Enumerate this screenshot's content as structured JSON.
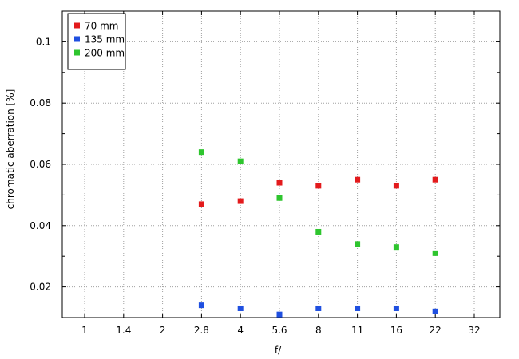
{
  "chart_data": {
    "type": "scatter",
    "title": "",
    "xlabel": "f/",
    "ylabel": "chromatic aberration [%]",
    "x_scale": "categorical",
    "categories": [
      "1",
      "1.4",
      "2",
      "2.8",
      "4",
      "5.6",
      "8",
      "11",
      "16",
      "22",
      "32"
    ],
    "ylim": [
      0.01,
      0.11
    ],
    "yticks": [
      "0.02",
      "0.04",
      "0.06",
      "0.08",
      "0.1"
    ],
    "ytick_values": [
      0.02,
      0.04,
      0.06,
      0.08,
      0.1
    ],
    "grid": true,
    "legend_position": "top-left",
    "series": [
      {
        "name": "70 mm",
        "color": "#e31a1c",
        "points": [
          {
            "x": "2.8",
            "y": 0.047
          },
          {
            "x": "4",
            "y": 0.048
          },
          {
            "x": "5.6",
            "y": 0.054
          },
          {
            "x": "8",
            "y": 0.053
          },
          {
            "x": "11",
            "y": 0.055
          },
          {
            "x": "16",
            "y": 0.053
          },
          {
            "x": "22",
            "y": 0.055
          }
        ]
      },
      {
        "name": "135 mm",
        "color": "#1f4fe0",
        "points": [
          {
            "x": "2.8",
            "y": 0.014
          },
          {
            "x": "4",
            "y": 0.013
          },
          {
            "x": "5.6",
            "y": 0.011
          },
          {
            "x": "8",
            "y": 0.013
          },
          {
            "x": "11",
            "y": 0.013
          },
          {
            "x": "16",
            "y": 0.013
          },
          {
            "x": "22",
            "y": 0.012
          }
        ]
      },
      {
        "name": "200 mm",
        "color": "#2ec52e",
        "points": [
          {
            "x": "2.8",
            "y": 0.064
          },
          {
            "x": "4",
            "y": 0.061
          },
          {
            "x": "5.6",
            "y": 0.049
          },
          {
            "x": "8",
            "y": 0.038
          },
          {
            "x": "11",
            "y": 0.034
          },
          {
            "x": "16",
            "y": 0.033
          },
          {
            "x": "22",
            "y": 0.031
          }
        ]
      }
    ]
  }
}
